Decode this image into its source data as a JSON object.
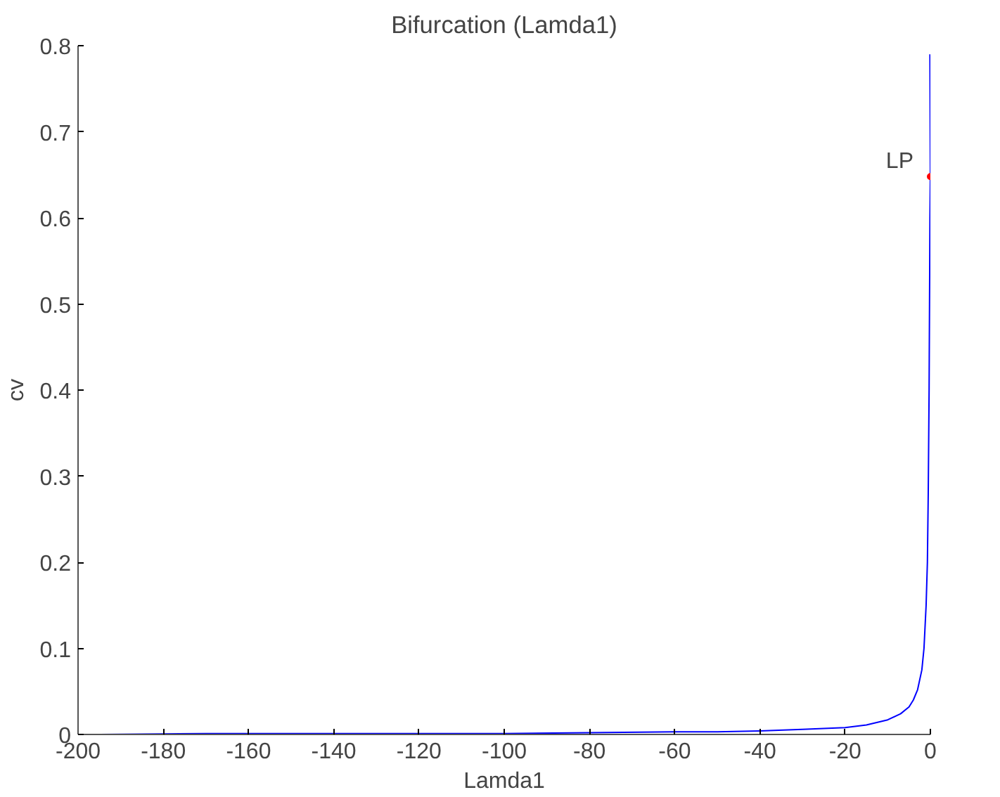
{
  "chart_data": {
    "type": "line",
    "title": "Bifurcation (Lamda1)",
    "xlabel": "Lamda1",
    "ylabel": "cv",
    "series": [
      {
        "color": "#0000ff",
        "x": [
          -195,
          -170,
          -150,
          -120,
          -100,
          -80,
          -60,
          -50,
          -40,
          -30,
          -20,
          -15,
          -10,
          -7,
          -5,
          -4,
          -3,
          -2,
          -1.5,
          -1,
          -0.7,
          -0.5,
          -0.3,
          -0.2,
          -0.1,
          0,
          -0.1
        ],
        "values": [
          0.0,
          0.001,
          0.001,
          0.001,
          0.001,
          0.002,
          0.003,
          0.003,
          0.004,
          0.006,
          0.008,
          0.011,
          0.017,
          0.024,
          0.032,
          0.04,
          0.052,
          0.075,
          0.1,
          0.15,
          0.2,
          0.28,
          0.4,
          0.5,
          0.6,
          0.648,
          0.79
        ]
      },
      {
        "type": "scatter",
        "color": "#ff0000",
        "marker": "circle",
        "x": [
          0
        ],
        "values": [
          0.648
        ]
      }
    ],
    "annotations": [
      {
        "text": "LP",
        "x": 0,
        "y": 0.648
      }
    ],
    "xlim": [
      -200,
      0
    ],
    "ylim": [
      0,
      0.8
    ],
    "xticks": [
      -200,
      -180,
      -160,
      -140,
      -120,
      -100,
      -80,
      -60,
      -40,
      -20,
      0
    ],
    "yticks": [
      0,
      0.1,
      0.2,
      0.3,
      0.4,
      0.5,
      0.6,
      0.7,
      0.8
    ],
    "grid": false
  }
}
